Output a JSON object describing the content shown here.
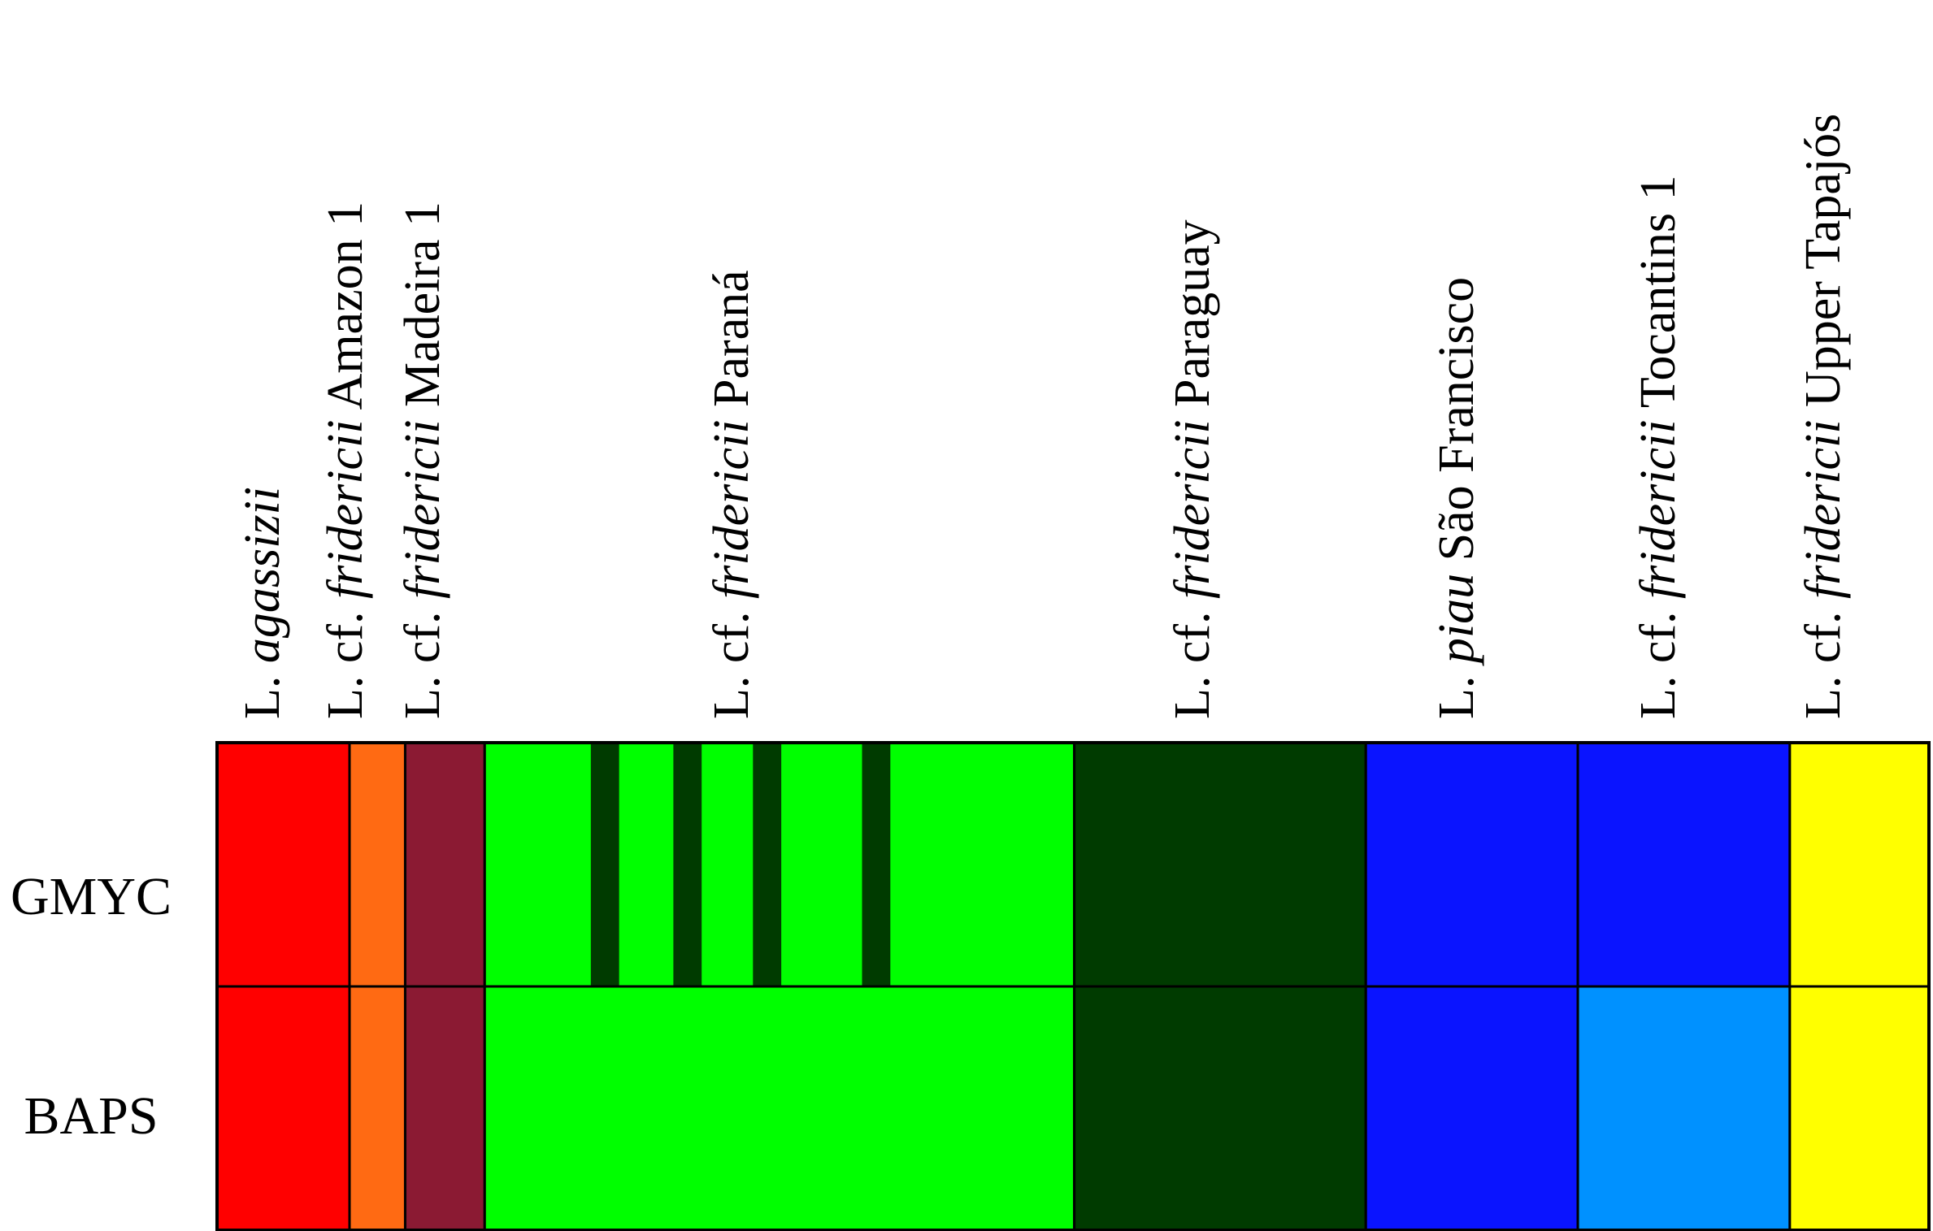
{
  "methods": [
    "GMYC",
    "BAPS"
  ],
  "columns": [
    {
      "id": "agassizii",
      "prefix": "L. ",
      "italic": "agassizii",
      "suffix": "",
      "color": "#ff0000",
      "weight": 1.0
    },
    {
      "id": "amazon1",
      "prefix": "L. cf. ",
      "italic": "fridericii",
      "suffix": " Amazon 1",
      "color": "#ff6a13",
      "weight": 0.42
    },
    {
      "id": "madeira1",
      "prefix": "L. cf. ",
      "italic": "fridericii",
      "suffix": " Madeira 1",
      "color": "#8b1a33",
      "weight": 0.6
    },
    {
      "id": "parana",
      "prefix": "L. cf. ",
      "italic": "fridericii",
      "suffix": " Paraná",
      "color": "#00ff00",
      "weight": 4.45
    },
    {
      "id": "paraguay",
      "prefix": "L. cf. ",
      "italic": "fridericii",
      "suffix": " Paraguay",
      "color": "#003b00",
      "weight": 2.2
    },
    {
      "id": "saofrancisco",
      "prefix": "L. ",
      "italic": "piau",
      "suffix": " São Francisco",
      "color": "#0a14ff",
      "weight": 1.6
    },
    {
      "id": "tocantins1",
      "prefix": "L. cf. ",
      "italic": "fridericii",
      "suffix": " Tocantins 1",
      "color": "#0a14ff",
      "weight": 1.6
    },
    {
      "id": "uppertapajos",
      "prefix": "L. cf. ",
      "italic": "fridericii",
      "suffix": " Upper Tapajós",
      "color": "#ffff00",
      "weight": 1.05
    }
  ],
  "gmyc_paraná_subclusters": {
    "count": 4,
    "color": "#003b00",
    "positions": [
      0.18,
      0.32,
      0.455,
      0.64
    ],
    "width": 0.048
  },
  "baps_overrides": {
    "tocantins1": "#0091ff"
  },
  "colors": {
    "cell_border": "#000000",
    "red": "#ff0000",
    "orange": "#ff6a13",
    "maroon": "#8b1a33",
    "bright_green": "#00ff00",
    "dark_green": "#003b00",
    "blue": "#0a14ff",
    "light_blue": "#0091ff",
    "yellow": "#ffff00"
  }
}
